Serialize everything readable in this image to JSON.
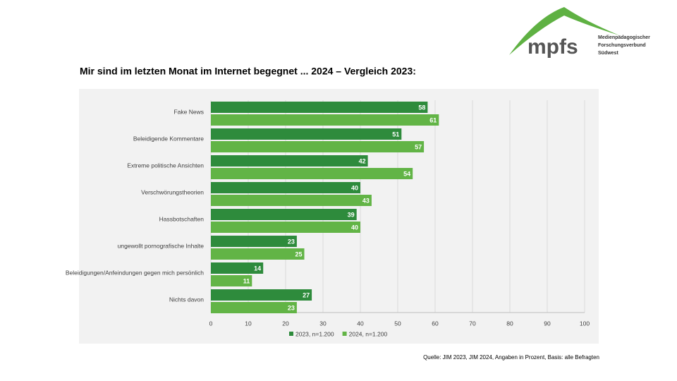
{
  "logo": {
    "name": "mpfs",
    "lines": [
      "Medienpädagogischer",
      "Forschungsverbund",
      "Südwest"
    ]
  },
  "chart_data": {
    "type": "hbar",
    "title": "Mir sind im letzten Monat im Internet begegnet ... 2024 – Vergleich 2023:",
    "categories": [
      "Fake News",
      "Beleidigende Kommentare",
      "Extreme politische Ansichten",
      "Verschwörungstheorien",
      "Hassbotschaften",
      "ungewollt pornografische Inhalte",
      "Beleidigungen/Anfeindungen gegen mich persönlich",
      "Nichts davon"
    ],
    "series": [
      {
        "name": "2023, n=1.200",
        "color": "#2e8b3c",
        "values": [
          58,
          51,
          42,
          40,
          39,
          23,
          14,
          27
        ]
      },
      {
        "name": "2024, n=1.200",
        "color": "#62b446",
        "values": [
          61,
          57,
          54,
          43,
          40,
          25,
          11,
          23
        ]
      }
    ],
    "xlim": [
      0,
      100
    ],
    "xticks": [
      0,
      10,
      20,
      30,
      40,
      50,
      60,
      70,
      80,
      90,
      100
    ],
    "grid": true,
    "legend": "bottom"
  },
  "source": "Quelle: JIM 2023, JIM 2024, Angaben in Prozent, Basis: alle Befragten"
}
